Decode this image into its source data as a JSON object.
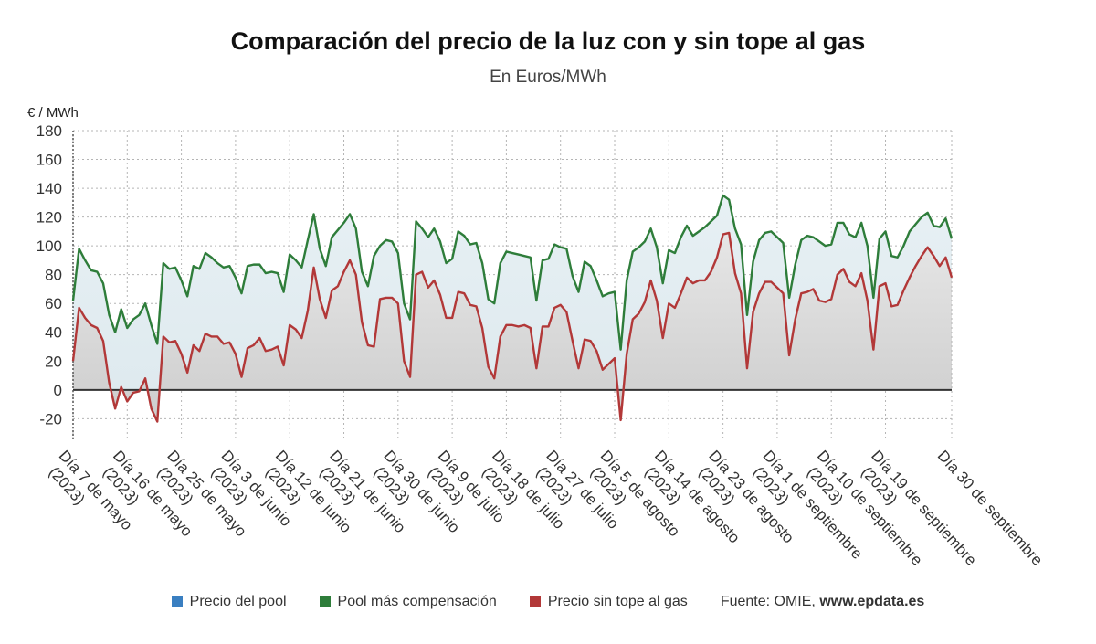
{
  "title": "Comparación del precio de la luz con y sin tope al gas",
  "subtitle": "En Euros/MWh",
  "legend": {
    "items": [
      {
        "label": "Precio del pool",
        "color": "#3a7fc1"
      },
      {
        "label": "Pool más compensación",
        "color": "#2e7d3a"
      },
      {
        "label": "Precio sin tope al gas",
        "color": "#b23838"
      }
    ],
    "source_label": "Fuente: OMIE,",
    "source_site": "www.epdata.es"
  },
  "chart_data": {
    "type": "line",
    "ylabel": "€ / MWh",
    "ylim": [
      -35,
      180
    ],
    "yticks": [
      -20,
      0,
      20,
      40,
      60,
      80,
      100,
      120,
      140,
      160,
      180
    ],
    "grid": true,
    "x_count": 147,
    "x_ticks": [
      {
        "i": 0,
        "label": [
          "Día 7 de mayo",
          "(2023)"
        ]
      },
      {
        "i": 9,
        "label": [
          "Día 16 de mayo",
          "(2023)"
        ]
      },
      {
        "i": 18,
        "label": [
          "Día 25 de mayo",
          "(2023)"
        ]
      },
      {
        "i": 27,
        "label": [
          "Día 3 de junio",
          "(2023)"
        ]
      },
      {
        "i": 36,
        "label": [
          "Día 12 de junio",
          "(2023)"
        ]
      },
      {
        "i": 45,
        "label": [
          "Día 21 de junio",
          "(2023)"
        ]
      },
      {
        "i": 54,
        "label": [
          "Día 30 de junio",
          "(2023)"
        ]
      },
      {
        "i": 63,
        "label": [
          "Día 9 de julio",
          "(2023)"
        ]
      },
      {
        "i": 72,
        "label": [
          "Día 18 de julio",
          "(2023)"
        ]
      },
      {
        "i": 81,
        "label": [
          "Día 27 de julio",
          "(2023)"
        ]
      },
      {
        "i": 90,
        "label": [
          "Día 5 de agosto",
          "(2023)"
        ]
      },
      {
        "i": 99,
        "label": [
          "Día 14 de agosto",
          "(2023)"
        ]
      },
      {
        "i": 108,
        "label": [
          "Día 23 de agosto",
          "(2023)"
        ]
      },
      {
        "i": 117,
        "label": [
          "Día 1 de septiembre",
          "(2023)"
        ]
      },
      {
        "i": 126,
        "label": [
          "Día 10 de septiembre",
          "(2023)"
        ]
      },
      {
        "i": 135,
        "label": [
          "Día 19 de septiembre",
          "(2023)"
        ]
      },
      {
        "i": 146,
        "label": [
          "Día 30 de septiembre"
        ]
      }
    ],
    "series": [
      {
        "name": "Precio del pool",
        "color": "#3a7fc1",
        "values": []
      },
      {
        "name": "Pool más compensación",
        "color": "#2e7d3a",
        "values": [
          62,
          98,
          90,
          83,
          82,
          74,
          52,
          40,
          56,
          43,
          49,
          52,
          60,
          45,
          32,
          88,
          84,
          85,
          76,
          65,
          86,
          84,
          95,
          92,
          88,
          85,
          86,
          78,
          67,
          86,
          87,
          87,
          81,
          82,
          81,
          68,
          94,
          90,
          85,
          104,
          122,
          98,
          86,
          106,
          111,
          116,
          122,
          112,
          82,
          72,
          93,
          100,
          104,
          103,
          95,
          60,
          49,
          117,
          112,
          106,
          112,
          103,
          88,
          91,
          110,
          107,
          101,
          102,
          88,
          63,
          60,
          88,
          96,
          95,
          94,
          93,
          92,
          62,
          90,
          91,
          101,
          99,
          98,
          79,
          68,
          89,
          86,
          76,
          65,
          67,
          68,
          28,
          76,
          96,
          99,
          103,
          112,
          99,
          74,
          97,
          95,
          106,
          114,
          107,
          110,
          113,
          117,
          121,
          135,
          132,
          112,
          101,
          52,
          89,
          104,
          109,
          110,
          106,
          102,
          64,
          87,
          104,
          107,
          106,
          103,
          100,
          101,
          116,
          116,
          108,
          106,
          116,
          100,
          64,
          105,
          110,
          93,
          92,
          100,
          110,
          115,
          120,
          123,
          114,
          113,
          119,
          105
        ]
      },
      {
        "name": "Precio sin tope al gas",
        "color": "#b23838",
        "values": [
          20,
          57,
          50,
          45,
          43,
          34,
          5,
          -13,
          2,
          -8,
          -2,
          -1,
          8,
          -13,
          -22,
          37,
          33,
          34,
          25,
          12,
          31,
          27,
          39,
          37,
          37,
          32,
          33,
          25,
          9,
          29,
          31,
          36,
          27,
          28,
          30,
          17,
          45,
          42,
          36,
          55,
          85,
          63,
          50,
          69,
          72,
          82,
          90,
          80,
          47,
          31,
          30,
          63,
          64,
          64,
          60,
          20,
          9,
          80,
          82,
          71,
          76,
          66,
          50,
          50,
          68,
          67,
          59,
          58,
          43,
          16,
          8,
          37,
          45,
          45,
          44,
          45,
          43,
          15,
          44,
          44,
          57,
          59,
          54,
          34,
          15,
          35,
          34,
          27,
          14,
          18,
          22,
          -21,
          25,
          49,
          53,
          61,
          76,
          62,
          36,
          60,
          57,
          67,
          78,
          74,
          76,
          76,
          82,
          92,
          108,
          109,
          81,
          67,
          15,
          54,
          67,
          75,
          75,
          71,
          67,
          24,
          49,
          67,
          68,
          70,
          62,
          61,
          63,
          80,
          84,
          75,
          72,
          81,
          62,
          28,
          72,
          74,
          58,
          59,
          69,
          78,
          86,
          93,
          99,
          93,
          86,
          92,
          78
        ]
      }
    ]
  }
}
